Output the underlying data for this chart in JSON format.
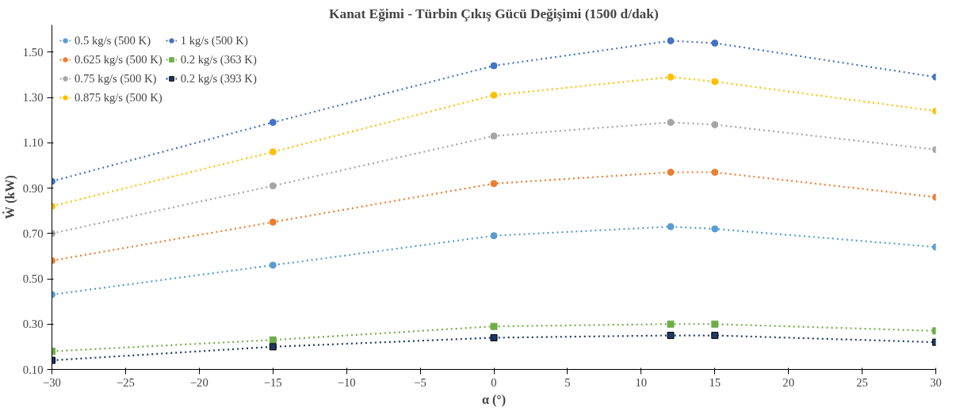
{
  "chart_data": {
    "type": "line",
    "title": "Kanat Eğimi - Türbin Çıkış Gücü Değişimi (1500 d/dak)",
    "xlabel": "α (°)",
    "ylabel": "Ẇ (kW)",
    "x": [
      -30,
      -15,
      0,
      12,
      15,
      30
    ],
    "xlim": [
      -30,
      30
    ],
    "xticks": [
      -30,
      -25,
      -20,
      -15,
      -10,
      -5,
      0,
      5,
      10,
      15,
      20,
      25,
      30
    ],
    "ylim": [
      0.1,
      1.62
    ],
    "yticks": [
      {
        "value": 0.1,
        "label": "0.10"
      },
      {
        "value": 0.3,
        "label": "0.30"
      },
      {
        "value": 0.5,
        "label": "0.50"
      },
      {
        "value": 0.7,
        "label": "0.70"
      },
      {
        "value": 0.9,
        "label": "0.90"
      },
      {
        "value": 1.1,
        "label": "1.10"
      },
      {
        "value": 1.3,
        "label": "1.30"
      },
      {
        "value": 1.5,
        "label": "1.50"
      }
    ],
    "legend": "top left",
    "line_style": "dotted",
    "series": [
      {
        "name": "0.5 kg/s (500 K)",
        "color": "#5b9bd5",
        "marker": "circle",
        "values": [
          0.43,
          0.56,
          0.69,
          0.73,
          0.72,
          0.64
        ]
      },
      {
        "name": "0.625 kg/s (500 K)",
        "color": "#ed7d31",
        "marker": "circle",
        "values": [
          0.58,
          0.75,
          0.92,
          0.97,
          0.97,
          0.86
        ]
      },
      {
        "name": "0.75 kg/s (500 K)",
        "color": "#a5a5a5",
        "marker": "circle",
        "values": [
          0.7,
          0.91,
          1.13,
          1.19,
          1.18,
          1.07
        ]
      },
      {
        "name": "0.875 kg/s (500 K)",
        "color": "#ffc000",
        "marker": "circle",
        "values": [
          0.82,
          1.06,
          1.31,
          1.39,
          1.37,
          1.24
        ]
      },
      {
        "name": "1 kg/s (500 K)",
        "color": "#4472c4",
        "marker": "circle",
        "values": [
          0.93,
          1.19,
          1.44,
          1.55,
          1.54,
          1.39
        ]
      },
      {
        "name": "0.2 kg/s (363 K)",
        "color": "#70ad47",
        "marker": "square",
        "values": [
          0.18,
          0.23,
          0.29,
          0.3,
          0.3,
          0.27
        ]
      },
      {
        "name": "0.2 kg/s (393 K)",
        "color": "#1f3864",
        "marker": "square",
        "values": [
          0.14,
          0.2,
          0.24,
          0.25,
          0.25,
          0.22
        ]
      }
    ]
  }
}
